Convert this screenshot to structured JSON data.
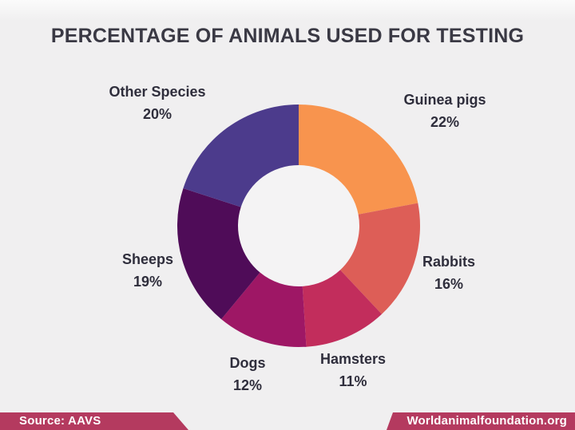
{
  "header": {
    "title": "PERCENTAGE OF ANIMALS USED FOR TESTING"
  },
  "chart_data": {
    "type": "pie",
    "variant": "donut",
    "title": "PERCENTAGE OF ANIMALS USED FOR TESTING",
    "direction": "clockwise",
    "start_angle_deg": 0,
    "inner_radius_ratio": 0.5,
    "hole_color": "#f4f3f4",
    "segments": [
      {
        "label": "Guinea pigs",
        "value": 22,
        "pct_label": "22%",
        "color": "#f8944e"
      },
      {
        "label": "Rabbits",
        "value": 16,
        "pct_label": "16%",
        "color": "#dd5e57"
      },
      {
        "label": "Hamsters",
        "value": 11,
        "pct_label": "11%",
        "color": "#c22d5c"
      },
      {
        "label": "Dogs",
        "value": 12,
        "pct_label": "12%",
        "color": "#9e1765"
      },
      {
        "label": "Sheeps",
        "value": 19,
        "pct_label": "19%",
        "color": "#4f0c58"
      },
      {
        "label": "Other Species",
        "value": 20,
        "pct_label": "20%",
        "color": "#4c3b8c"
      }
    ]
  },
  "footer": {
    "source": "Source: AAVS",
    "website": "Worldanimalfoundation.org",
    "banner_color": "#b43a5f"
  },
  "colors": {
    "background": "#f0eff0",
    "title_text": "#3a3944",
    "label_text": "#2f2e3c"
  }
}
